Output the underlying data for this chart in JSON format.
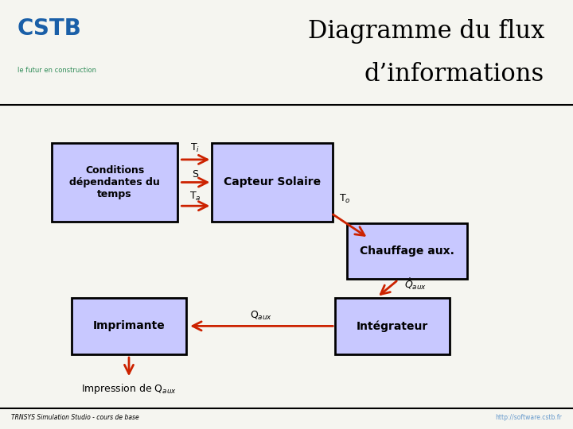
{
  "title_line1": "Diagramme du flux",
  "title_line2": "d’informations",
  "background_color": "#f5f5f0",
  "box_fill": "#c8c8ff",
  "box_edge": "#000000",
  "arrow_color": "#cc2200",
  "text_color": "#000000",
  "footer_left": "TRNSYS Simulation Studio - cours de base",
  "footer_right": "http://software.cstb.fr"
}
